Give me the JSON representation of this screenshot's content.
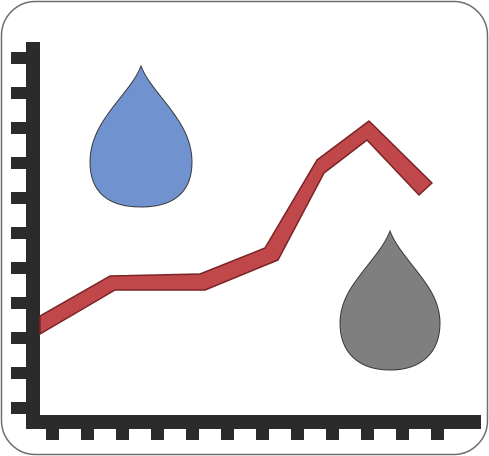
{
  "icon": {
    "name": "water-trend-chart-icon",
    "colors": {
      "background": "#ffffff",
      "frame_stroke": "#6e6e6e",
      "axis": "#2b2b2b",
      "trend_line": "#c0474a",
      "trend_line_outline": "#7a2426",
      "blue_drop": "#7093cf",
      "gray_drop": "#7f7f7f",
      "drop_outline": "#3a3a3a"
    },
    "parts": [
      "rounded-frame",
      "y-axis-with-ticks",
      "x-axis-with-ticks",
      "rising-trend-line",
      "blue-water-drop-icon",
      "gray-water-drop-icon"
    ]
  }
}
